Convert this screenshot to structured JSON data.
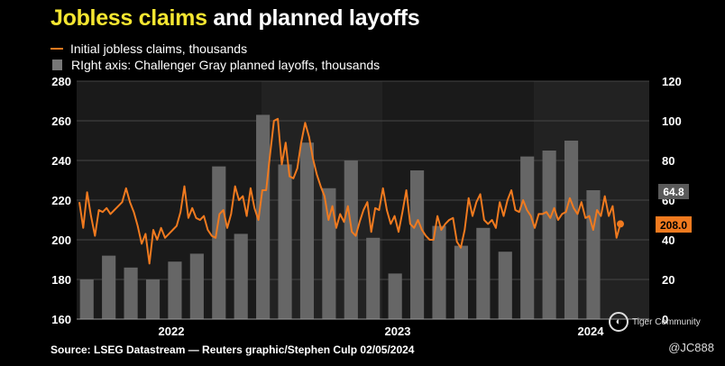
{
  "title": {
    "highlight": "Jobless claims",
    "rest": "and planned layoffs"
  },
  "legend": {
    "line_label": "Initial jobless claims, thousands",
    "bar_label": "RIght axis: Challenger Gray planned layoffs, thousands"
  },
  "source": "Source: LSEG Datastream — Reuters graphic/Stephen Culp 02/05/2024",
  "watermark": {
    "brand": "Tiger Community",
    "handle": "@JC888"
  },
  "colors": {
    "line": "#f07a1f",
    "bars": "#666666",
    "highlight": "#f5e631",
    "shade": "#222222"
  },
  "chart_data": {
    "type": "bar+line",
    "left_axis": {
      "min": 160,
      "max": 280,
      "ticks": [
        160,
        180,
        200,
        220,
        240,
        260,
        280
      ]
    },
    "right_axis": {
      "min": 0,
      "max": 120,
      "ticks": [
        0,
        20,
        40,
        60,
        80,
        100,
        120
      ]
    },
    "x_labels": [
      "2022",
      "2023",
      "2024"
    ],
    "bar_series": {
      "name": "Challenger Gray planned layoffs",
      "axis": "right",
      "months": [
        "2021-12",
        "2022-01",
        "2022-02",
        "2022-03",
        "2022-04",
        "2022-05",
        "2022-06",
        "2022-07",
        "2022-08",
        "2022-09",
        "2022-10",
        "2022-11",
        "2022-12",
        "2023-01",
        "2023-02",
        "2023-03",
        "2023-04",
        "2023-05",
        "2023-06",
        "2023-07",
        "2023-08",
        "2023-09",
        "2023-10",
        "2023-11",
        "2023-12",
        "2024-01"
      ],
      "values": [
        20,
        32,
        26,
        20,
        29,
        33,
        77,
        43,
        103,
        78,
        89,
        66,
        80,
        41,
        23,
        75,
        47,
        37,
        46,
        34,
        82,
        85,
        90,
        65,
        0,
        0
      ]
    },
    "line_series": {
      "name": "Initial jobless claims",
      "axis": "left",
      "values": [
        219,
        206,
        224,
        212,
        202,
        215,
        214,
        216,
        213,
        215,
        217,
        219,
        226,
        219,
        214,
        207,
        198,
        203,
        188,
        205,
        200,
        206,
        201,
        203,
        205,
        207,
        214,
        227,
        211,
        216,
        211,
        210,
        212,
        205,
        202,
        201,
        213,
        215,
        206,
        213,
        227,
        220,
        222,
        212,
        226,
        216,
        210,
        225,
        225,
        243,
        260,
        261,
        238,
        249,
        232,
        231,
        236,
        249,
        259,
        252,
        241,
        233,
        227,
        222,
        210,
        217,
        206,
        213,
        209,
        217,
        204,
        202,
        209,
        215,
        219,
        204,
        216,
        215,
        226,
        215,
        208,
        212,
        204,
        214,
        225,
        208,
        206,
        210,
        205,
        202,
        200,
        200,
        212,
        205,
        208,
        210,
        211,
        199,
        196,
        205,
        221,
        212,
        219,
        223,
        210,
        208,
        210,
        206,
        219,
        212,
        220,
        225,
        215,
        214,
        220,
        215,
        212,
        206,
        213,
        213,
        214,
        211,
        216,
        210,
        213,
        214,
        221,
        216,
        213,
        219,
        211,
        212,
        205,
        215,
        212,
        222,
        212,
        217,
        201,
        208
      ],
      "last_value_label": "208.0",
      "last_bar_label": "64.8"
    }
  }
}
